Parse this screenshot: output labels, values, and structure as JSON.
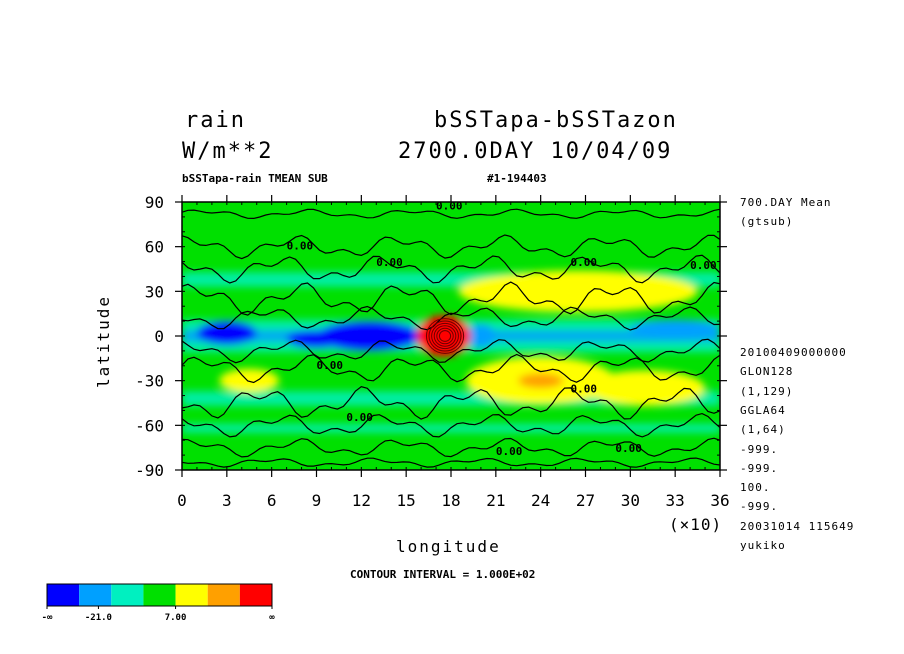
{
  "header": {
    "variable": "rain",
    "units": "W/m**2",
    "dataset": "bSSTapa-bSSTazon",
    "time": "2700.0DAY 10/04/09",
    "subtitle": "bSSTapa-rain TMEAN SUB",
    "run_id": "#1-194403"
  },
  "side_info": {
    "mean": "700.DAY Mean",
    "source": "(gtsub)",
    "lines": [
      "20100409000000",
      "GLON128",
      "(1,129)",
      "GGLA64",
      "(1,64)",
      "-999.",
      "-999.",
      "100.",
      "-999.",
      "20031014 115649",
      "yukiko"
    ]
  },
  "footer": {
    "contour_interval": "CONTOUR INTERVAL = 1.000E+02"
  },
  "colorbar": {
    "colors": [
      "#0000ff",
      "#00a0ff",
      "#00f0c0",
      "#00e000",
      "#ffff00",
      "#ffa000",
      "#ff0000"
    ],
    "labels": [
      "-∞",
      "-21.0",
      "7.00",
      "∞"
    ]
  },
  "chart_data": {
    "type": "heatmap",
    "title": "bSSTapa-bSSTazon",
    "xlabel": "longitude",
    "ylabel": "latitude",
    "x_multiplier_label": "(×10)",
    "xlim": [
      0,
      36
    ],
    "ylim": [
      -90,
      90
    ],
    "x_ticks": [
      "0",
      "3",
      "6",
      "9",
      "12",
      "15",
      "18",
      "21",
      "24",
      "27",
      "30",
      "33",
      "36"
    ],
    "y_ticks": [
      "90",
      "60",
      "30",
      "0",
      "-30",
      "-60",
      "-90"
    ],
    "contour_labels": [
      "0.00",
      "0.00",
      "0.00",
      "0.00",
      "0.00",
      "0.00",
      "0.00",
      "0.00",
      "0.00",
      "0.00"
    ],
    "features": [
      {
        "kind": "blob",
        "lon": 12.5,
        "lat": 0,
        "rx": 3.5,
        "ry": 10,
        "level": 0
      },
      {
        "kind": "blob",
        "lon": 3,
        "lat": 2,
        "rx": 2,
        "ry": 8,
        "level": 0
      },
      {
        "kind": "blob",
        "lon": 9,
        "lat": -2,
        "rx": 2,
        "ry": 6,
        "level": 0
      },
      {
        "kind": "blob",
        "lon": 20,
        "lat": 0,
        "rx": 1,
        "ry": 8,
        "level": 1
      },
      {
        "kind": "blob",
        "lon": 33,
        "lat": 5,
        "rx": 3,
        "ry": 6,
        "level": 1
      },
      {
        "kind": "blob",
        "lon": 17.5,
        "lat": 0,
        "rx": 1.8,
        "ry": 14,
        "level": 6
      },
      {
        "kind": "blob",
        "lon": 26.5,
        "lat": 30,
        "rx": 8,
        "ry": 14,
        "level": 4
      },
      {
        "kind": "blob",
        "lon": 24,
        "lat": -30,
        "rx": 5,
        "ry": 16,
        "level": 4
      },
      {
        "kind": "blob",
        "lon": 31,
        "lat": -35,
        "rx": 4,
        "ry": 12,
        "level": 4
      },
      {
        "kind": "blob",
        "lon": 4.5,
        "lat": -30,
        "rx": 2,
        "ry": 8,
        "level": 4
      },
      {
        "kind": "blob",
        "lon": 24,
        "lat": -30,
        "rx": 1.5,
        "ry": 5,
        "level": 5
      }
    ]
  }
}
